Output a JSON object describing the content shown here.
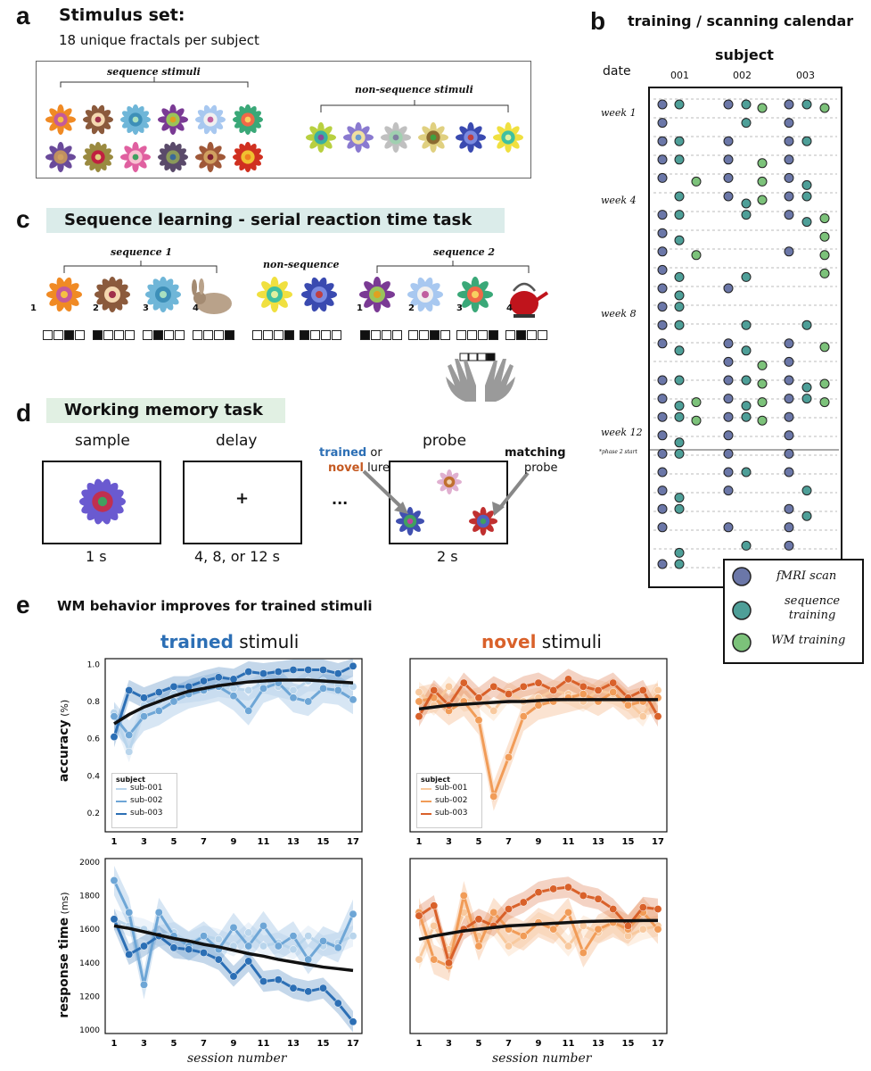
{
  "panel_a": {
    "label": "a",
    "title": "Stimulus set:",
    "subtitle": "18 unique fractals per subject",
    "sequence_label": "sequence stimuli",
    "nonsequence_label": "non-sequence stimuli"
  },
  "panel_b": {
    "label": "b",
    "title": "training / scanning calendar",
    "subject_header": "subject",
    "date_header": "date",
    "subjects": [
      "001",
      "002",
      "003"
    ],
    "weeks": [
      "week 1",
      "week 4",
      "week 8",
      "week 12"
    ],
    "phase_note": "*phase 2 start",
    "legend": [
      {
        "label": "fMRI scan",
        "color": "#6b77a8"
      },
      {
        "label": "sequence training",
        "color": "#4e9f98"
      },
      {
        "label": "WM training",
        "color": "#7cc27a"
      }
    ]
  },
  "panel_c": {
    "label": "c",
    "title": "Sequence learning - serial reaction time task",
    "seq1_label": "sequence 1",
    "nonseq_label": "non-sequence",
    "seq2_label": "sequence 2",
    "numbers": [
      "1",
      "2",
      "3",
      "4"
    ]
  },
  "panel_d": {
    "label": "d",
    "title": "Working memory task",
    "sample": "sample",
    "delay": "delay",
    "probe": "probe",
    "sample_time": "1 s",
    "delay_time": "4, 8, or 12 s",
    "probe_time": "2 s",
    "fixation": "+",
    "ellipsis": "...",
    "trained": "trained",
    "or": " or",
    "novel": "novel",
    "lure": " lure",
    "matching": "matching",
    "probe_word": "probe"
  },
  "panel_e": {
    "label": "e",
    "title": "WM behavior improves for trained stimuli",
    "trained_word": "trained",
    "novel_word": "novel",
    "stimuli_word": " stimuli",
    "acc_ylabel_main": "accuracy",
    "acc_ylabel_unit": " (%)",
    "rt_ylabel_main": "response time",
    "rt_ylabel_unit": " (ms)",
    "xlabel": "session number",
    "legend_title": "subject",
    "legend_items": [
      "sub-001",
      "sub-002",
      "sub-003"
    ]
  },
  "chart_data": [
    {
      "type": "line",
      "title": "trained stimuli - accuracy",
      "xlabel": "",
      "ylabel": "accuracy (%)",
      "x": [
        1,
        2,
        3,
        4,
        5,
        6,
        7,
        8,
        9,
        10,
        11,
        12,
        13,
        14,
        15,
        16,
        17
      ],
      "ylim": [
        0.1,
        1.03
      ],
      "yticks": [
        0.2,
        0.4,
        0.6,
        0.8,
        1.0
      ],
      "ytick_labels": [
        "0.2",
        "0.4",
        "0.6",
        "0.8",
        "1.0"
      ],
      "xticks": [
        1,
        3,
        5,
        7,
        9,
        11,
        13,
        15,
        17
      ],
      "series": [
        {
          "name": "sub-001",
          "color": "#b9d5ec",
          "values": [
            0.74,
            0.53,
            0.78,
            0.8,
            0.84,
            0.85,
            0.86,
            0.88,
            0.87,
            0.86,
            0.9,
            0.88,
            0.86,
            0.91,
            0.91,
            0.89,
            0.88
          ]
        },
        {
          "name": "sub-002",
          "color": "#6ea6d6",
          "values": [
            0.72,
            0.62,
            0.72,
            0.75,
            0.8,
            0.84,
            0.86,
            0.88,
            0.83,
            0.75,
            0.87,
            0.9,
            0.82,
            0.8,
            0.87,
            0.86,
            0.81
          ]
        },
        {
          "name": "sub-003",
          "color": "#2c6fb5",
          "values": [
            0.61,
            0.86,
            0.82,
            0.85,
            0.88,
            0.88,
            0.91,
            0.93,
            0.92,
            0.96,
            0.95,
            0.96,
            0.97,
            0.97,
            0.97,
            0.95,
            0.99
          ]
        }
      ],
      "fit": [
        0.68,
        0.73,
        0.77,
        0.8,
        0.83,
        0.855,
        0.87,
        0.885,
        0.895,
        0.905,
        0.91,
        0.915,
        0.915,
        0.915,
        0.91,
        0.905,
        0.9
      ],
      "legend": [
        "sub-001",
        "sub-002",
        "sub-003"
      ]
    },
    {
      "type": "line",
      "title": "novel stimuli - accuracy",
      "xlabel": "",
      "ylabel": "",
      "x": [
        1,
        2,
        3,
        4,
        5,
        6,
        7,
        8,
        9,
        10,
        11,
        12,
        13,
        14,
        15,
        16,
        17
      ],
      "ylim": [
        0.1,
        1.03
      ],
      "yticks": [
        0.2,
        0.4,
        0.6,
        0.8,
        1.0
      ],
      "xticks": [
        1,
        3,
        5,
        7,
        9,
        11,
        13,
        15,
        17
      ],
      "series": [
        {
          "name": "sub-001",
          "color": "#f8c99e",
          "values": [
            0.85,
            0.78,
            0.88,
            0.8,
            0.82,
            0.75,
            0.85,
            0.8,
            0.82,
            0.86,
            0.84,
            0.8,
            0.86,
            0.84,
            0.8,
            0.72,
            0.86
          ]
        },
        {
          "name": "sub-002",
          "color": "#f19c58",
          "values": [
            0.8,
            0.82,
            0.75,
            0.8,
            0.7,
            0.29,
            0.5,
            0.72,
            0.78,
            0.8,
            0.82,
            0.84,
            0.8,
            0.85,
            0.78,
            0.8,
            0.82
          ]
        },
        {
          "name": "sub-003",
          "color": "#d9612a",
          "values": [
            0.72,
            0.86,
            0.78,
            0.9,
            0.82,
            0.88,
            0.84,
            0.88,
            0.9,
            0.86,
            0.92,
            0.88,
            0.86,
            0.9,
            0.82,
            0.86,
            0.72
          ]
        }
      ],
      "fit": [
        0.76,
        0.77,
        0.78,
        0.785,
        0.79,
        0.795,
        0.8,
        0.8,
        0.805,
        0.81,
        0.81,
        0.81,
        0.81,
        0.81,
        0.81,
        0.81,
        0.81
      ],
      "legend": [
        "sub-001",
        "sub-002",
        "sub-003"
      ]
    },
    {
      "type": "line",
      "title": "trained stimuli - response time",
      "xlabel": "session number",
      "ylabel": "response time (ms)",
      "x": [
        1,
        2,
        3,
        4,
        5,
        6,
        7,
        8,
        9,
        10,
        11,
        12,
        13,
        14,
        15,
        16,
        17
      ],
      "ylim": [
        980,
        2020
      ],
      "yticks": [
        1000,
        1200,
        1400,
        1600,
        1800,
        2000
      ],
      "ytick_labels": [
        "1000",
        "1200",
        "1400",
        "1600",
        "1800",
        "2000"
      ],
      "xticks": [
        1,
        3,
        5,
        7,
        9,
        11,
        13,
        15,
        17
      ],
      "series": [
        {
          "name": "sub-001",
          "color": "#b9d5ec",
          "values": [
            1660,
            1620,
            1600,
            1560,
            1580,
            1520,
            1560,
            1540,
            1500,
            1580,
            1500,
            1520,
            1480,
            1560,
            1500,
            1520,
            1560
          ]
        },
        {
          "name": "sub-002",
          "color": "#6ea6d6",
          "values": [
            1890,
            1700,
            1270,
            1700,
            1560,
            1500,
            1560,
            1480,
            1610,
            1500,
            1620,
            1500,
            1560,
            1420,
            1530,
            1490,
            1690
          ]
        },
        {
          "name": "sub-003",
          "color": "#2c6fb5",
          "values": [
            1660,
            1450,
            1500,
            1560,
            1490,
            1480,
            1460,
            1420,
            1320,
            1410,
            1290,
            1300,
            1250,
            1230,
            1250,
            1160,
            1050
          ]
        }
      ],
      "fit": [
        1620,
        1605,
        1585,
        1565,
        1545,
        1530,
        1510,
        1495,
        1475,
        1455,
        1440,
        1420,
        1405,
        1390,
        1375,
        1365,
        1355
      ],
      "legend": [
        "sub-001",
        "sub-002",
        "sub-003"
      ]
    },
    {
      "type": "line",
      "title": "novel stimuli - response time",
      "xlabel": "session number",
      "ylabel": "",
      "x": [
        1,
        2,
        3,
        4,
        5,
        6,
        7,
        8,
        9,
        10,
        11,
        12,
        13,
        14,
        15,
        16,
        17
      ],
      "ylim": [
        980,
        2020
      ],
      "yticks": [
        1000,
        1200,
        1400,
        1600,
        1800,
        2000
      ],
      "xticks": [
        1,
        3,
        5,
        7,
        9,
        11,
        13,
        15,
        17
      ],
      "series": [
        {
          "name": "sub-001",
          "color": "#f8c99e",
          "values": [
            1420,
            1620,
            1480,
            1700,
            1560,
            1620,
            1500,
            1560,
            1640,
            1600,
            1500,
            1620,
            1580,
            1640,
            1560,
            1600,
            1620
          ]
        },
        {
          "name": "sub-002",
          "color": "#f19c58",
          "values": [
            1700,
            1420,
            1380,
            1800,
            1500,
            1700,
            1600,
            1560,
            1640,
            1600,
            1700,
            1460,
            1600,
            1640,
            1600,
            1700,
            1600
          ]
        },
        {
          "name": "sub-003",
          "color": "#d9612a",
          "values": [
            1680,
            1740,
            1400,
            1600,
            1660,
            1620,
            1720,
            1760,
            1820,
            1840,
            1850,
            1800,
            1780,
            1720,
            1620,
            1730,
            1720
          ]
        }
      ],
      "fit": [
        1540,
        1560,
        1575,
        1590,
        1600,
        1610,
        1620,
        1625,
        1630,
        1635,
        1640,
        1645,
        1648,
        1650,
        1650,
        1652,
        1652
      ],
      "legend": [
        "sub-001",
        "sub-002",
        "sub-003"
      ]
    }
  ]
}
